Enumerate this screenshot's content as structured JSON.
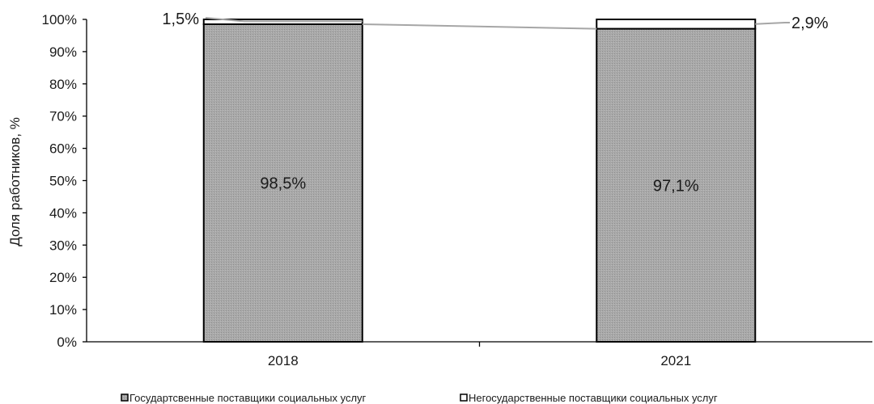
{
  "chart_data": {
    "type": "bar",
    "stacked": true,
    "categories": [
      "2018",
      "2021"
    ],
    "series": [
      {
        "name": "Государтсвенные поставщики социальных услуг",
        "values": [
          98.5,
          97.1
        ],
        "labels": [
          "98,5%",
          "97,1%"
        ],
        "color": "#a6a6a6"
      },
      {
        "name": "Негосударственные поставщики социальных услуг",
        "values": [
          1.5,
          2.9
        ],
        "labels": [
          "1,5%",
          "2,9%"
        ],
        "color": "#ffffff"
      }
    ],
    "title": "",
    "xlabel": "",
    "ylabel": "Доля работников, %",
    "ylim": [
      0,
      100
    ],
    "yticks": [
      0,
      10,
      20,
      30,
      40,
      50,
      60,
      70,
      80,
      90,
      100
    ],
    "yticklabels": [
      "0%",
      "10%",
      "20%",
      "30%",
      "40%",
      "50%",
      "60%",
      "70%",
      "80%",
      "90%",
      "100%"
    ],
    "grid": false,
    "legend_position": "bottom"
  }
}
